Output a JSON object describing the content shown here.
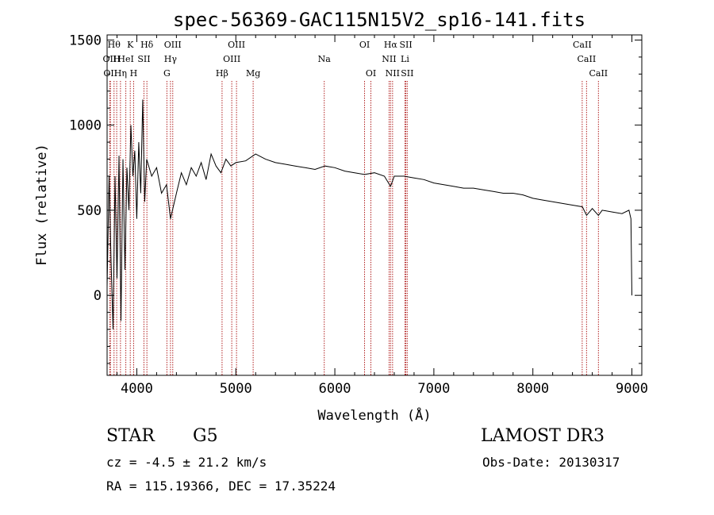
{
  "chart_data": {
    "type": "line",
    "title": "spec-56369-GAC115N15V2_sp16-141.fits",
    "xlabel": "Wavelength (Å)",
    "ylabel": "Flux (relative)",
    "xlim": [
      3700,
      9100
    ],
    "ylim": [
      -470,
      1530
    ],
    "xticks": [
      4000,
      5000,
      6000,
      7000,
      8000,
      9000
    ],
    "yticks": [
      0,
      500,
      1000,
      1500
    ],
    "series": [
      {
        "name": "spectrum",
        "x": [
          3700,
          3720,
          3740,
          3760,
          3780,
          3800,
          3820,
          3840,
          3860,
          3880,
          3900,
          3920,
          3940,
          3960,
          3980,
          4000,
          4020,
          4040,
          4060,
          4080,
          4100,
          4150,
          4200,
          4250,
          4300,
          4340,
          4400,
          4450,
          4500,
          4550,
          4600,
          4650,
          4700,
          4750,
          4800,
          4850,
          4900,
          4950,
          5000,
          5100,
          5200,
          5300,
          5400,
          5500,
          5600,
          5700,
          5800,
          5900,
          6000,
          6100,
          6200,
          6300,
          6400,
          6500,
          6563,
          6600,
          6700,
          6800,
          6900,
          7000,
          7100,
          7200,
          7300,
          7400,
          7500,
          7600,
          7700,
          7800,
          7900,
          8000,
          8100,
          8200,
          8300,
          8400,
          8500,
          8542,
          8600,
          8662,
          8700,
          8800,
          8900,
          8970,
          8990,
          9000
        ],
        "y": [
          50,
          700,
          200,
          -200,
          700,
          100,
          820,
          -150,
          800,
          150,
          750,
          500,
          1000,
          700,
          850,
          450,
          900,
          600,
          1150,
          550,
          800,
          700,
          750,
          600,
          650,
          450,
          600,
          720,
          650,
          750,
          700,
          780,
          680,
          830,
          760,
          720,
          800,
          760,
          780,
          790,
          830,
          800,
          780,
          770,
          760,
          750,
          740,
          760,
          750,
          730,
          720,
          710,
          720,
          700,
          640,
          700,
          700,
          690,
          680,
          660,
          650,
          640,
          630,
          630,
          620,
          610,
          600,
          600,
          590,
          570,
          560,
          550,
          540,
          530,
          520,
          470,
          510,
          470,
          500,
          490,
          480,
          500,
          450,
          0
        ]
      }
    ],
    "lines": [
      {
        "wavelength": 3727,
        "label": "OII",
        "row": 1
      },
      {
        "wavelength": 3734,
        "label": "OII",
        "row": 2
      },
      {
        "wavelength": 3770,
        "label": "Hθ",
        "row": 0
      },
      {
        "wavelength": 3797,
        "label": "H",
        "row": 1
      },
      {
        "wavelength": 3835,
        "label": "Hη",
        "row": 2
      },
      {
        "wavelength": 3889,
        "label": "HeI",
        "row": 1
      },
      {
        "wavelength": 3934,
        "label": "K",
        "row": 0
      },
      {
        "wavelength": 3968,
        "label": "H",
        "row": 2
      },
      {
        "wavelength": 4072,
        "label": "SII",
        "row": 1
      },
      {
        "wavelength": 4102,
        "label": "Hδ",
        "row": 0
      },
      {
        "wavelength": 4304,
        "label": "G",
        "row": 2
      },
      {
        "wavelength": 4340,
        "label": "Hγ",
        "row": 1
      },
      {
        "wavelength": 4363,
        "label": "OIII",
        "row": 0
      },
      {
        "wavelength": 4861,
        "label": "Hβ",
        "row": 2
      },
      {
        "wavelength": 4959,
        "label": "OIII",
        "row": 1
      },
      {
        "wavelength": 5007,
        "label": "OIII",
        "row": 0
      },
      {
        "wavelength": 5175,
        "label": "Mg",
        "row": 2
      },
      {
        "wavelength": 5893,
        "label": "Na",
        "row": 1
      },
      {
        "wavelength": 6300,
        "label": "OI",
        "row": 0
      },
      {
        "wavelength": 6364,
        "label": "OI",
        "row": 2
      },
      {
        "wavelength": 6548,
        "label": "NII",
        "row": 1
      },
      {
        "wavelength": 6563,
        "label": "Hα",
        "row": 0
      },
      {
        "wavelength": 6583,
        "label": "NII",
        "row": 2
      },
      {
        "wavelength": 6708,
        "label": "Li",
        "row": 1
      },
      {
        "wavelength": 6717,
        "label": "SII",
        "row": 0
      },
      {
        "wavelength": 6731,
        "label": "SII",
        "row": 2
      },
      {
        "wavelength": 8498,
        "label": "CaII",
        "row": 0
      },
      {
        "wavelength": 8542,
        "label": "CaII",
        "row": 1
      },
      {
        "wavelength": 8662,
        "label": "CaII",
        "row": 2
      }
    ]
  },
  "info": {
    "object_class": "STAR",
    "subclass": "G5",
    "survey": "LAMOST DR3",
    "cz": "cz = -4.5 ± 21.2 km/s",
    "obs_date": "Obs-Date: 20130317",
    "coords": "RA = 115.19366, DEC =  17.35224"
  },
  "colors": {
    "line_marker": "#b22222",
    "spectrum": "#000000"
  }
}
